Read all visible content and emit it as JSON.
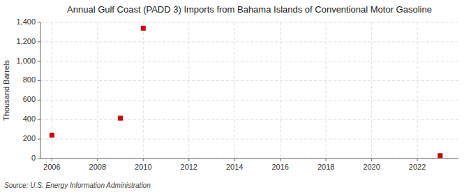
{
  "chart_data": {
    "type": "scatter",
    "title": "Annual Gulf Coast (PADD 3) Imports from Bahama Islands of Conventional Motor Gasoline",
    "ylabel": "Thousand Barrels",
    "source": "Source: U.S. Energy Information Administration",
    "x": [
      2006,
      2009,
      2010,
      2023
    ],
    "values": [
      240,
      415,
      1340,
      30
    ],
    "color": "#cc0000",
    "marker": "square",
    "xlim": [
      2005.5,
      2023.8
    ],
    "ylim": [
      0,
      1400
    ],
    "xticks": [
      2006,
      2008,
      2010,
      2012,
      2014,
      2016,
      2018,
      2020,
      2022
    ],
    "yticks": [
      0,
      200,
      400,
      600,
      800,
      {
        "value": 1000,
        "label": "1,000"
      },
      {
        "value": 1200,
        "label": "1,200"
      },
      {
        "value": 1400,
        "label": "1,400"
      }
    ],
    "grid": true
  }
}
